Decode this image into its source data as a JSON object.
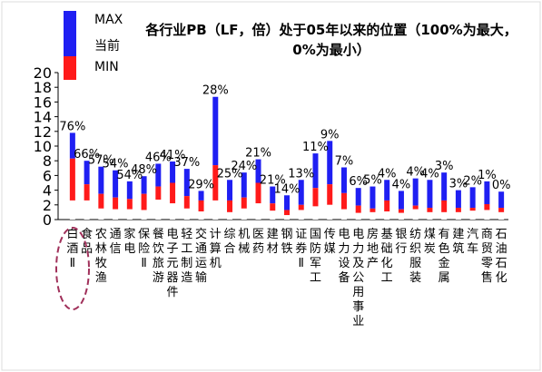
{
  "title": "各行业PB（LF，倍）处于05年以来的位置（100%为最大，0%为最小）",
  "legend": [
    {
      "name": "MAX",
      "color": "#1f1ff2"
    },
    {
      "name": "当前",
      "color": "#1f1ff2"
    },
    {
      "name": "MIN",
      "color": "#ff1a1a"
    }
  ],
  "chart_data": {
    "type": "bar",
    "title": "各行业PB（LF，倍）处于05年以来的位置（100%为最大，0%为最小）",
    "ylim": [
      0,
      20
    ],
    "yticks": [
      0,
      2,
      4,
      6,
      8,
      10,
      12,
      14,
      16,
      18,
      20
    ],
    "grid": false,
    "legend_position": "top-left",
    "categories": [
      "白酒Ⅱ",
      "食品",
      "农林牧渔",
      "通信",
      "家电",
      "保险Ⅱ",
      "餐饮旅游",
      "电子元器件",
      "轻工制造",
      "交通运输",
      "计算机",
      "综合",
      "机械",
      "医药",
      "建材",
      "钢铁",
      "证券Ⅱ",
      "国防军工",
      "传媒",
      "电力设备",
      "电力及公用事业",
      "房地产",
      "基础化工",
      "银行",
      "纺织服装",
      "煤炭",
      "有色金属",
      "建筑",
      "汽车",
      "商贸零售",
      "石油石化"
    ],
    "series": [
      {
        "name": "MAX",
        "values": [
          11.8,
          8.0,
          7.2,
          6.7,
          5.2,
          5.9,
          7.6,
          7.9,
          6.9,
          3.9,
          16.7,
          5.4,
          6.4,
          8.2,
          4.5,
          3.3,
          5.4,
          9.0,
          10.7,
          7.1,
          4.3,
          4.5,
          5.4,
          3.9,
          5.6,
          5.4,
          6.4,
          4.0,
          4.4,
          5.2,
          3.8
        ]
      },
      {
        "name": "当前",
        "values": [
          8.3,
          4.8,
          3.5,
          3.0,
          2.8,
          3.5,
          4.5,
          5.0,
          3.2,
          2.6,
          7.4,
          2.6,
          3.0,
          5.0,
          2.2,
          1.3,
          2.0,
          4.3,
          4.8,
          3.6,
          1.9,
          1.5,
          2.6,
          1.4,
          1.9,
          1.6,
          2.6,
          1.6,
          1.6,
          2.1,
          1.6
        ]
      },
      {
        "name": "MIN",
        "values": [
          2.6,
          2.6,
          1.5,
          1.4,
          1.4,
          1.3,
          2.7,
          2.2,
          1.5,
          1.1,
          2.6,
          1.0,
          1.5,
          2.2,
          1.2,
          0.6,
          1.3,
          1.8,
          2.0,
          1.4,
          0.9,
          1.0,
          1.1,
          0.9,
          1.4,
          1.0,
          1.0,
          1.0,
          1.2,
          1.3,
          1.0
        ]
      }
    ],
    "percent_labels": [
      "76%",
      "66%",
      "57%",
      "54%",
      "54%",
      "48%",
      "46%",
      "41%",
      "37%",
      "29%",
      "28%",
      "25%",
      "24%",
      "21%",
      "21%",
      "14%",
      "13%",
      "11%",
      "9%",
      "7%",
      "6%",
      "5%",
      "4%",
      "4%",
      "4%",
      "4%",
      "3%",
      "3%",
      "2%",
      "1%",
      "0%"
    ]
  }
}
